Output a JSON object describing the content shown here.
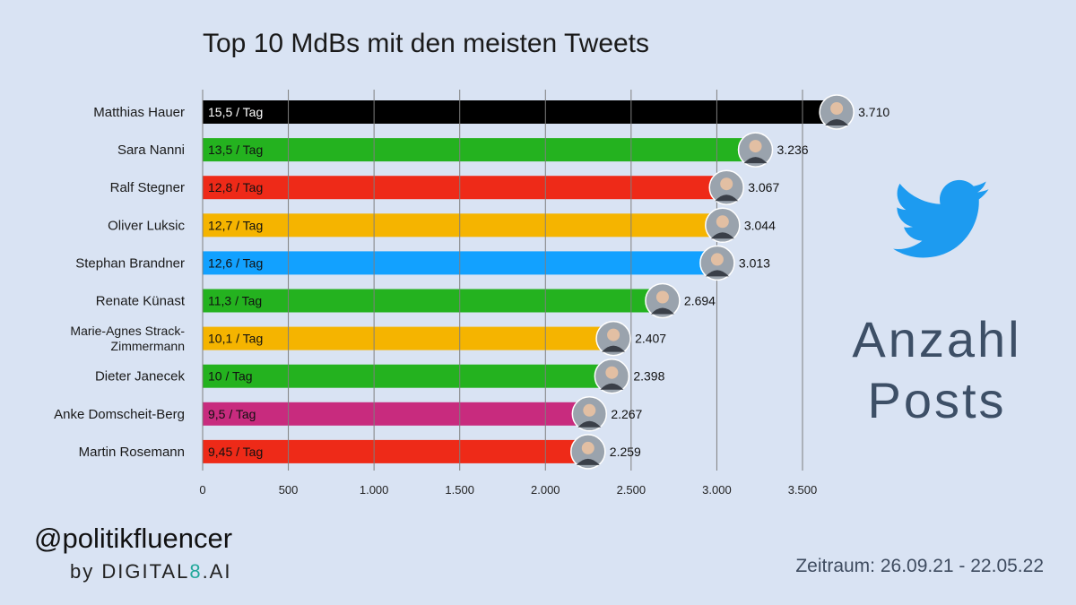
{
  "brand": {
    "handle": "@politikfluencer",
    "by_prefix": "by ",
    "by_name_a": "DIGITAL",
    "by_name_b": "8",
    "by_name_c": ".AI"
  },
  "period": "Zeitraum: 26.09.21 - 22.05.22",
  "side_label": {
    "line1": "Anzahl",
    "line2": "Posts"
  },
  "icons": {
    "logo": "twitter-bird-icon",
    "avatar": "politician-avatar-icon"
  },
  "colors": {
    "background": "#d9e3f3",
    "twitter_blue": "#1d9bf0",
    "gridline": "#7f7f7f"
  },
  "chart_data": {
    "type": "bar",
    "orientation": "horizontal",
    "title": "Top 10 MdBs mit den meisten Tweets",
    "xlabel": "",
    "ylabel": "",
    "xlim": [
      0,
      3900
    ],
    "x_ticks": [
      0,
      500,
      1000,
      1500,
      2000,
      2500,
      3000,
      3500
    ],
    "x_tick_labels": [
      "0",
      "500",
      "1.000",
      "1.500",
      "2.000",
      "2.500",
      "3.000",
      "3.500"
    ],
    "grid": true,
    "categories": [
      "Matthias Hauer",
      "Sara Nanni",
      "Ralf Stegner",
      "Oliver Luksic",
      "Stephan Brandner",
      "Renate Künast",
      "Marie-Agnes Strack-Zimmermann",
      "Dieter Janecek",
      "Anke Domscheit-Berg",
      "Martin Rosemann"
    ],
    "category_lines": [
      [
        "Matthias Hauer"
      ],
      [
        "Sara Nanni"
      ],
      [
        "Ralf Stegner"
      ],
      [
        "Oliver Luksic"
      ],
      [
        "Stephan Brandner"
      ],
      [
        "Renate Künast"
      ],
      [
        "Marie-Agnes Strack-",
        "Zimmermann"
      ],
      [
        "Dieter Janecek"
      ],
      [
        "Anke Domscheit-Berg"
      ],
      [
        "Martin Rosemann"
      ]
    ],
    "values": [
      3710,
      3236,
      3067,
      3044,
      3013,
      2694,
      2407,
      2398,
      2267,
      2259
    ],
    "value_labels": [
      "3.710",
      "3.236",
      "3.067",
      "3.044",
      "3.013",
      "2.694",
      "2.407",
      "2.398",
      "2.267",
      "2.259"
    ],
    "bar_texts": [
      "15,5 / Tag",
      "13,5 / Tag",
      "12,8 / Tag",
      "12,7 / Tag",
      "12,6 / Tag",
      "11,3 / Tag",
      "10,1 / Tag",
      "10 / Tag",
      "9,5 / Tag",
      "9,45 / Tag"
    ],
    "colors": [
      "#000000",
      "#24b21f",
      "#ee2a18",
      "#f5b400",
      "#12a1ff",
      "#24b21f",
      "#f5b400",
      "#24b21f",
      "#c82b7e",
      "#ee2a18"
    ]
  }
}
